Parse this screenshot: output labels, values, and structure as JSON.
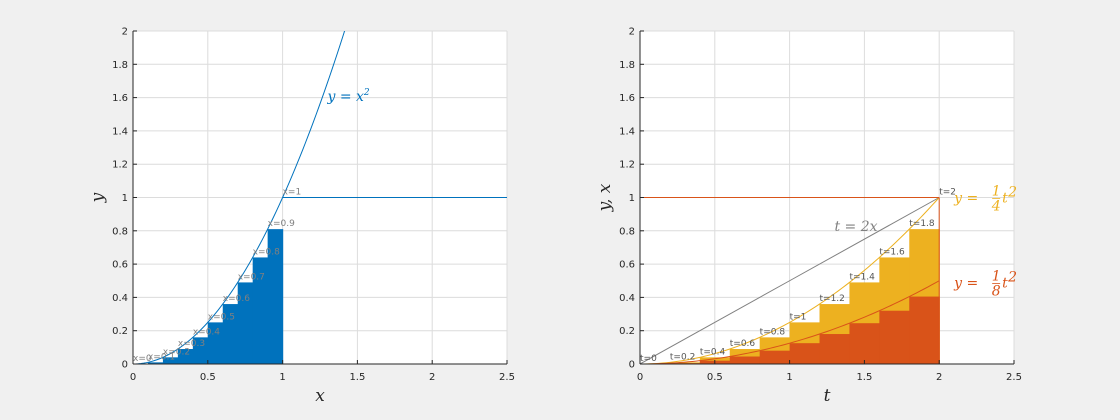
{
  "colors": {
    "background": "#f0f0f0",
    "axes_bg": "#ffffff",
    "grid": "#dcdcdc",
    "axis": "#262626",
    "blue": "#0072bd",
    "orange": "#d95319",
    "yellow": "#edb120",
    "gray": "#808080",
    "tlabel_gray": "#555555"
  },
  "chart_data": [
    {
      "type": "area",
      "xlim": [
        0,
        2.5
      ],
      "ylim": [
        0,
        2
      ],
      "xticks": [
        "0",
        "0.5",
        "1",
        "1.5",
        "2",
        "2.5"
      ],
      "yticks": [
        "0",
        "0.2",
        "0.4",
        "0.6",
        "0.8",
        "1",
        "1.2",
        "1.4",
        "1.6",
        "1.8",
        "2"
      ],
      "xlabel": "x",
      "ylabel": "y",
      "grid": true,
      "curve_label": {
        "base": "y = x",
        "exp": "2"
      },
      "curve": {
        "function": "x^2",
        "x_range": [
          0,
          1.42
        ]
      },
      "horizontal_line": {
        "y": 1,
        "x_range": [
          1,
          2.5
        ]
      },
      "bars": {
        "x_left": [
          0,
          0.1,
          0.2,
          0.3,
          0.4,
          0.5,
          0.6,
          0.7,
          0.8,
          0.9
        ],
        "width": 0.1,
        "heights": [
          0,
          0.01,
          0.04,
          0.09,
          0.16,
          0.25,
          0.36,
          0.49,
          0.64,
          0.81
        ]
      },
      "point_labels": [
        {
          "text": "x=0",
          "x": 0,
          "y": 0
        },
        {
          "text": "x=0.1",
          "x": 0.1,
          "y": 0.01
        },
        {
          "text": "x=0.2",
          "x": 0.2,
          "y": 0.04
        },
        {
          "text": "x=0.3",
          "x": 0.3,
          "y": 0.09
        },
        {
          "text": "x=0.4",
          "x": 0.4,
          "y": 0.16
        },
        {
          "text": "x=0.5",
          "x": 0.5,
          "y": 0.25
        },
        {
          "text": "x=0.6",
          "x": 0.6,
          "y": 0.36
        },
        {
          "text": "x=0.7",
          "x": 0.7,
          "y": 0.49
        },
        {
          "text": "x=0.8",
          "x": 0.8,
          "y": 0.64
        },
        {
          "text": "x=0.9",
          "x": 0.9,
          "y": 0.81
        },
        {
          "text": "x=1",
          "x": 1,
          "y": 1
        }
      ]
    },
    {
      "type": "area",
      "xlim": [
        0,
        2.5
      ],
      "ylim": [
        0,
        2
      ],
      "xticks": [
        "0",
        "0.5",
        "1",
        "1.5",
        "2",
        "2.5"
      ],
      "yticks": [
        "0",
        "0.2",
        "0.4",
        "0.6",
        "0.8",
        "1",
        "1.2",
        "1.4",
        "1.6",
        "1.8",
        "2"
      ],
      "xlabel": "t",
      "ylabel": "y, x",
      "grid": true,
      "line_label": "t = 2x",
      "upper_label": {
        "prefix": "y = ",
        "num": "1",
        "den": "4",
        "var": "t",
        "exp": "2"
      },
      "lower_label": {
        "prefix": "y = ",
        "num": "1",
        "den": "8",
        "var": "t",
        "exp": "2"
      },
      "curves": [
        {
          "function": "t^2/4",
          "t_range": [
            0,
            2
          ]
        },
        {
          "function": "t^2/8",
          "t_range": [
            0,
            2
          ]
        },
        {
          "function": "t/2",
          "t_range": [
            0,
            2
          ]
        }
      ],
      "horizontal_line": {
        "y": 1,
        "t_range": [
          0,
          2
        ]
      },
      "bars": {
        "t_left": [
          0,
          0.2,
          0.4,
          0.6,
          0.8,
          1.0,
          1.2,
          1.4,
          1.6,
          1.8
        ],
        "width": 0.2,
        "upper_heights": [
          0,
          0.01,
          0.04,
          0.09,
          0.16,
          0.25,
          0.36,
          0.49,
          0.64,
          0.81
        ],
        "lower_heights": [
          0,
          0.005,
          0.02,
          0.045,
          0.08,
          0.125,
          0.18,
          0.245,
          0.32,
          0.405
        ]
      },
      "point_labels": [
        {
          "text": "t=0",
          "x": 0,
          "y": 0
        },
        {
          "text": "t=0.2",
          "x": 0.2,
          "y": 0.01
        },
        {
          "text": "t=0.4",
          "x": 0.4,
          "y": 0.04
        },
        {
          "text": "t=0.6",
          "x": 0.6,
          "y": 0.09
        },
        {
          "text": "t=0.8",
          "x": 0.8,
          "y": 0.16
        },
        {
          "text": "t=1",
          "x": 1,
          "y": 0.25
        },
        {
          "text": "t=1.2",
          "x": 1.2,
          "y": 0.36
        },
        {
          "text": "t=1.4",
          "x": 1.4,
          "y": 0.49
        },
        {
          "text": "t=1.6",
          "x": 1.6,
          "y": 0.64
        },
        {
          "text": "t=1.8",
          "x": 1.8,
          "y": 0.81
        },
        {
          "text": "t=2",
          "x": 2,
          "y": 1
        }
      ]
    }
  ]
}
